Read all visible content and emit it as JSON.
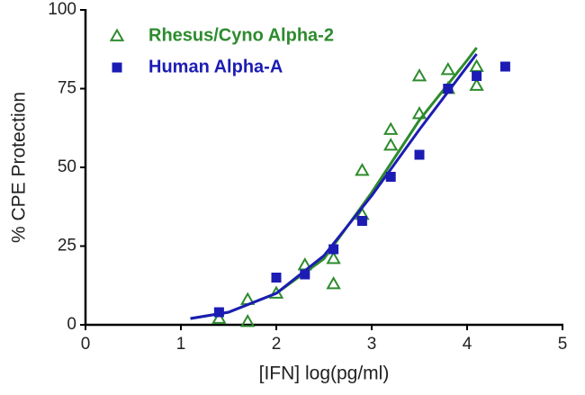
{
  "chart_data": {
    "type": "scatter",
    "x_label": "[IFN] log(pg/ml)",
    "y_label": "% CPE Protection",
    "xlim": [
      0,
      5
    ],
    "xticks": [
      0,
      1,
      2,
      3,
      4,
      5
    ],
    "ylim": [
      0,
      100
    ],
    "yticks": [
      0,
      25,
      50,
      75,
      100
    ],
    "grid": false,
    "legend": "top-left",
    "series": [
      {
        "name": "Rhesus/Cyno Alpha-2",
        "color": "#2e8b2e",
        "marker": "triangle",
        "x": [
          1.4,
          1.7,
          1.7,
          2.0,
          2.3,
          2.6,
          2.6,
          2.9,
          2.9,
          3.2,
          3.2,
          3.5,
          3.5,
          3.8,
          3.8,
          4.1,
          4.1
        ],
        "values": [
          2,
          8,
          1,
          10,
          19,
          21,
          13,
          49,
          35,
          62,
          57,
          79,
          67,
          81,
          75,
          82,
          76
        ],
        "fit": {
          "x": [
            1.1,
            1.5,
            2.0,
            2.5,
            3.0,
            3.5,
            4.0,
            4.1
          ],
          "values": [
            2,
            4,
            10,
            21,
            42,
            65,
            84,
            88
          ]
        }
      },
      {
        "name": "Human Alpha-A",
        "color": "#1c1cb4",
        "marker": "square",
        "x": [
          1.4,
          2.0,
          2.3,
          2.6,
          2.9,
          3.2,
          3.5,
          3.8,
          4.1,
          4.4
        ],
        "values": [
          4,
          15,
          16,
          24,
          33,
          47,
          54,
          75,
          79,
          82
        ],
        "fit": {
          "x": [
            1.1,
            1.5,
            2.0,
            2.5,
            3.0,
            3.5,
            4.0,
            4.1
          ],
          "values": [
            2,
            4,
            10,
            22,
            41,
            62,
            82,
            86
          ]
        }
      }
    ]
  }
}
